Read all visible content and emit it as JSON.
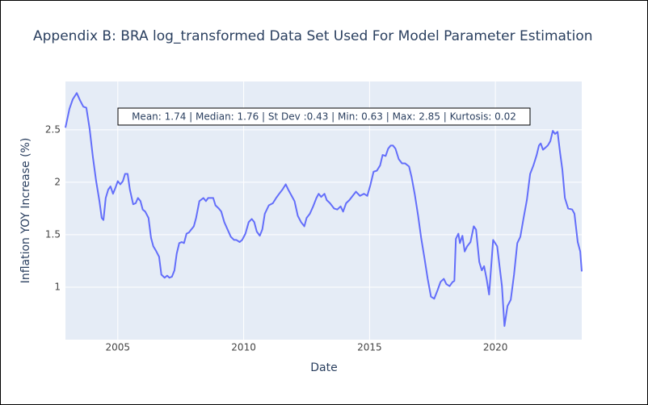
{
  "chart_data": {
    "type": "line",
    "title": "Appendix B: BRA log_transformed Data Set Used For Model Parameter Estimation",
    "xlabel": "Date",
    "ylabel": "Inflation YOY Increase (%)",
    "annotation": "Mean: 1.74 | Median: 1.76 | St Dev :0.43 | Min: 0.63 | Max: 2.85 | Kurtosis: 0.02",
    "color": "#636efa",
    "grid": true,
    "xlim": [
      2002.92,
      2023.43
    ],
    "ylim": [
      0.5,
      2.96
    ],
    "xticks": [
      2005,
      2010,
      2015,
      2020
    ],
    "yticks": [
      1,
      1.5,
      2,
      2.5
    ],
    "x": [
      2002.92,
      2003.08,
      2003.21,
      2003.37,
      2003.5,
      2003.63,
      2003.75,
      2003.88,
      2004.01,
      2004.14,
      2004.27,
      2004.36,
      2004.43,
      2004.52,
      2004.62,
      2004.71,
      2004.81,
      2004.91,
      2005.0,
      2005.1,
      2005.2,
      2005.29,
      2005.39,
      2005.48,
      2005.61,
      2005.71,
      2005.8,
      2005.9,
      2005.99,
      2006.09,
      2006.22,
      2006.32,
      2006.41,
      2006.51,
      2006.64,
      2006.73,
      2006.86,
      2006.96,
      2007.05,
      2007.15,
      2007.25,
      2007.34,
      2007.44,
      2007.54,
      2007.63,
      2007.73,
      2007.82,
      2007.92,
      2008.02,
      2008.11,
      2008.24,
      2008.4,
      2008.5,
      2008.59,
      2008.79,
      2008.88,
      2009.01,
      2009.11,
      2009.23,
      2009.36,
      2009.49,
      2009.62,
      2009.71,
      2009.84,
      2009.94,
      2010.07,
      2010.2,
      2010.32,
      2010.42,
      2010.52,
      2010.64,
      2010.74,
      2010.84,
      2011.0,
      2011.16,
      2011.29,
      2011.41,
      2011.54,
      2011.67,
      2011.77,
      2011.93,
      2012.02,
      2012.15,
      2012.28,
      2012.41,
      2012.5,
      2012.63,
      2012.76,
      2012.89,
      2012.98,
      2013.08,
      2013.21,
      2013.3,
      2013.43,
      2013.59,
      2013.72,
      2013.85,
      2013.95,
      2014.07,
      2014.2,
      2014.33,
      2014.46,
      2014.62,
      2014.78,
      2014.91,
      2015.03,
      2015.16,
      2015.29,
      2015.42,
      2015.52,
      2015.64,
      2015.74,
      2015.84,
      2015.93,
      2016.03,
      2016.16,
      2016.29,
      2016.41,
      2016.57,
      2016.67,
      2016.8,
      2016.93,
      2017.05,
      2017.18,
      2017.31,
      2017.44,
      2017.57,
      2017.7,
      2017.82,
      2017.95,
      2018.05,
      2018.18,
      2018.3,
      2018.37,
      2018.43,
      2018.53,
      2018.59,
      2018.69,
      2018.78,
      2018.88,
      2019.01,
      2019.14,
      2019.23,
      2019.36,
      2019.46,
      2019.55,
      2019.65,
      2019.75,
      2019.91,
      2020.07,
      2020.26,
      2020.36,
      2020.48,
      2020.61,
      2020.74,
      2020.87,
      2020.99,
      2021.12,
      2021.25,
      2021.38,
      2021.51,
      2021.64,
      2021.73,
      2021.8,
      2021.89,
      2021.99,
      2022.08,
      2022.18,
      2022.28,
      2022.37,
      2022.47,
      2022.57,
      2022.66,
      2022.76,
      2022.89,
      2023.05,
      2023.14,
      2023.27,
      2023.37,
      2023.43
    ],
    "values": [
      2.52,
      2.7,
      2.79,
      2.85,
      2.78,
      2.72,
      2.71,
      2.51,
      2.24,
      2.01,
      1.82,
      1.66,
      1.64,
      1.85,
      1.93,
      1.96,
      1.89,
      1.95,
      2.01,
      1.98,
      2.01,
      2.08,
      2.08,
      1.93,
      1.79,
      1.8,
      1.85,
      1.82,
      1.74,
      1.72,
      1.66,
      1.47,
      1.39,
      1.35,
      1.29,
      1.12,
      1.09,
      1.11,
      1.09,
      1.1,
      1.16,
      1.32,
      1.42,
      1.43,
      1.42,
      1.51,
      1.52,
      1.55,
      1.58,
      1.66,
      1.82,
      1.85,
      1.82,
      1.85,
      1.85,
      1.78,
      1.75,
      1.72,
      1.62,
      1.55,
      1.48,
      1.45,
      1.45,
      1.43,
      1.45,
      1.51,
      1.62,
      1.65,
      1.62,
      1.53,
      1.49,
      1.55,
      1.7,
      1.78,
      1.8,
      1.85,
      1.89,
      1.93,
      1.98,
      1.93,
      1.86,
      1.82,
      1.68,
      1.62,
      1.58,
      1.66,
      1.7,
      1.77,
      1.85,
      1.89,
      1.86,
      1.89,
      1.83,
      1.8,
      1.75,
      1.74,
      1.77,
      1.72,
      1.8,
      1.83,
      1.87,
      1.91,
      1.87,
      1.89,
      1.87,
      1.97,
      2.1,
      2.11,
      2.16,
      2.26,
      2.25,
      2.32,
      2.35,
      2.35,
      2.32,
      2.22,
      2.18,
      2.18,
      2.15,
      2.05,
      1.88,
      1.68,
      1.47,
      1.28,
      1.08,
      0.91,
      0.89,
      0.97,
      1.05,
      1.08,
      1.03,
      1.01,
      1.05,
      1.06,
      1.46,
      1.51,
      1.42,
      1.49,
      1.34,
      1.39,
      1.43,
      1.58,
      1.55,
      1.24,
      1.16,
      1.2,
      1.08,
      0.93,
      1.45,
      1.39,
      1.01,
      0.63,
      0.82,
      0.88,
      1.12,
      1.42,
      1.48,
      1.66,
      1.83,
      2.08,
      2.16,
      2.26,
      2.35,
      2.37,
      2.31,
      2.33,
      2.35,
      2.39,
      2.49,
      2.46,
      2.48,
      2.28,
      2.12,
      1.85,
      1.75,
      1.74,
      1.7,
      1.43,
      1.34,
      1.15
    ]
  }
}
